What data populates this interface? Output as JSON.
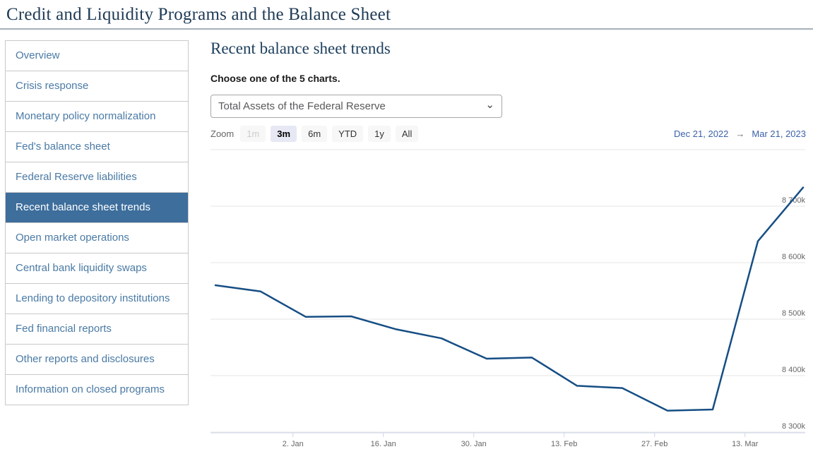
{
  "page": {
    "title": "Credit and Liquidity Programs and the Balance Sheet"
  },
  "sidebar": {
    "items": [
      {
        "label": "Overview",
        "selected": false
      },
      {
        "label": "Crisis response",
        "selected": false
      },
      {
        "label": "Monetary policy normalization",
        "selected": false
      },
      {
        "label": "Fed's balance sheet",
        "selected": false
      },
      {
        "label": "Federal Reserve liabilities",
        "selected": false
      },
      {
        "label": "Recent balance sheet trends",
        "selected": true
      },
      {
        "label": "Open market operations",
        "selected": false
      },
      {
        "label": "Central bank liquidity swaps",
        "selected": false
      },
      {
        "label": "Lending to depository institutions",
        "selected": false
      },
      {
        "label": "Fed financial reports",
        "selected": false
      },
      {
        "label": "Other reports and disclosures",
        "selected": false
      },
      {
        "label": "Information on closed programs",
        "selected": false
      }
    ]
  },
  "main": {
    "heading": "Recent balance sheet trends",
    "chooser_label": "Choose one of the 5 charts.",
    "select": {
      "value": "Total Assets of the Federal Reserve"
    },
    "range_selector": {
      "zoom_label": "Zoom",
      "buttons": [
        {
          "label": "1m",
          "state": "disabled"
        },
        {
          "label": "3m",
          "state": "selected"
        },
        {
          "label": "6m",
          "state": "normal"
        },
        {
          "label": "YTD",
          "state": "normal"
        },
        {
          "label": "1y",
          "state": "normal"
        },
        {
          "label": "All",
          "state": "normal"
        }
      ],
      "from_date": "Dec 21, 2022",
      "arrow": "→",
      "to_date": "Mar 21, 2023"
    }
  },
  "chart_data": {
    "type": "line",
    "title": "",
    "series": [
      {
        "name": "Total Assets of the Federal Reserve",
        "points": [
          {
            "day": 0,
            "value_k": 8560
          },
          {
            "day": 7,
            "value_k": 8549
          },
          {
            "day": 14,
            "value_k": 8504
          },
          {
            "day": 21,
            "value_k": 8505
          },
          {
            "day": 28,
            "value_k": 8482
          },
          {
            "day": 35,
            "value_k": 8466
          },
          {
            "day": 42,
            "value_k": 8430
          },
          {
            "day": 49,
            "value_k": 8432
          },
          {
            "day": 56,
            "value_k": 8382
          },
          {
            "day": 63,
            "value_k": 8378
          },
          {
            "day": 70,
            "value_k": 8338
          },
          {
            "day": 77,
            "value_k": 8340
          },
          {
            "day": 84,
            "value_k": 8638
          },
          {
            "day": 91,
            "value_k": 8733
          }
        ]
      }
    ],
    "x_range": {
      "start_label": "Dec 21, 2022",
      "end_label": "Mar 21, 2023",
      "total_days": 91
    },
    "xticks": [
      {
        "label": "2. Jan",
        "day": 12
      },
      {
        "label": "16. Jan",
        "day": 26
      },
      {
        "label": "30. Jan",
        "day": 40
      },
      {
        "label": "13. Feb",
        "day": 54
      },
      {
        "label": "27. Feb",
        "day": 68
      },
      {
        "label": "13. Mar",
        "day": 82
      }
    ],
    "yticks": [
      {
        "value_k": 8300,
        "label": "8 300k"
      },
      {
        "value_k": 8400,
        "label": "8 400k"
      },
      {
        "value_k": 8500,
        "label": "8 500k"
      },
      {
        "value_k": 8600,
        "label": "8 600k"
      },
      {
        "value_k": 8700,
        "label": "8 700k"
      },
      {
        "value_k": 8800,
        "label": ""
      }
    ],
    "ylim_k": [
      8300,
      8800
    ],
    "grid": true,
    "legend": "none",
    "colors": {
      "line": "#164e84",
      "gridline": "#e6e6e6",
      "axis": "#ccd6eb",
      "axis_text": "#666666"
    }
  }
}
